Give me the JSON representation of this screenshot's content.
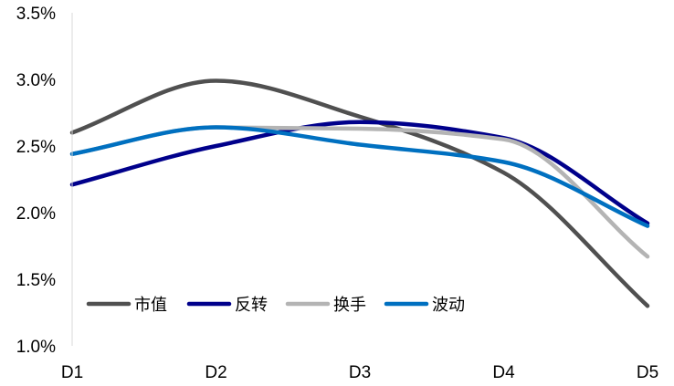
{
  "chart_data": {
    "type": "line",
    "smooth": true,
    "x": [
      "D1",
      "D2",
      "D3",
      "D4",
      "D5"
    ],
    "ylim": [
      0.01,
      0.035
    ],
    "yticks": [
      "1.0%",
      "1.5%",
      "2.0%",
      "2.5%",
      "3.0%",
      "3.5%"
    ],
    "ytick_values": [
      0.01,
      0.015,
      0.02,
      0.025,
      0.03,
      0.035
    ],
    "grid": false,
    "legend": "bottom-left",
    "series": [
      {
        "name": "市值",
        "color": "#505050",
        "values": [
          0.026,
          0.0299,
          0.0272,
          0.023,
          0.013
        ]
      },
      {
        "name": "反转",
        "color": "#00008b",
        "values": [
          0.0221,
          0.025,
          0.0268,
          0.0256,
          0.0192
        ]
      },
      {
        "name": "换手",
        "color": "#b4b4b4",
        "values": [
          0.0244,
          0.0264,
          0.0263,
          0.0255,
          0.0167
        ]
      },
      {
        "name": "波动",
        "color": "#0070c0",
        "values": [
          0.0244,
          0.0264,
          0.0251,
          0.0238,
          0.019
        ]
      }
    ]
  }
}
